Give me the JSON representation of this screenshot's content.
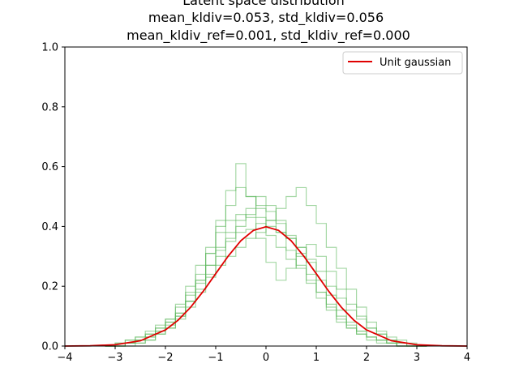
{
  "chart_data": {
    "type": "line",
    "title_lines": [
      "Latent space distribution",
      "mean_kldiv=0.053, std_kldiv=0.056",
      "mean_kldiv_ref=0.001, std_kldiv_ref=0.000"
    ],
    "xlim": [
      -4,
      4
    ],
    "ylim": [
      0.0,
      1.0
    ],
    "x_ticks": [
      -4,
      -3,
      -2,
      -1,
      0,
      1,
      2,
      3,
      4
    ],
    "x_tick_labels": [
      "−4",
      "−3",
      "−2",
      "−1",
      "0",
      "1",
      "2",
      "3",
      "4"
    ],
    "y_ticks": [
      0.0,
      0.2,
      0.4,
      0.6,
      0.8,
      1.0
    ],
    "y_tick_labels": [
      "0.0",
      "0.2",
      "0.4",
      "0.6",
      "0.8",
      "1.0"
    ],
    "grid": false,
    "legend": {
      "placement": "top-right",
      "entries": [
        "Unit gaussian"
      ]
    },
    "colors": {
      "gaussian": "#e00000",
      "histograms": "#5cb85c"
    },
    "reference_curve": {
      "name": "Unit gaussian",
      "x": [
        -4.0,
        -3.5,
        -3.0,
        -2.5,
        -2.0,
        -1.75,
        -1.5,
        -1.25,
        -1.0,
        -0.75,
        -0.5,
        -0.25,
        0.0,
        0.25,
        0.5,
        0.75,
        1.0,
        1.25,
        1.5,
        1.75,
        2.0,
        2.5,
        3.0,
        3.5,
        4.0
      ],
      "y": [
        0.0001,
        0.0009,
        0.0044,
        0.0175,
        0.054,
        0.0863,
        0.1295,
        0.1826,
        0.242,
        0.3011,
        0.3521,
        0.3867,
        0.3989,
        0.3867,
        0.3521,
        0.3011,
        0.242,
        0.1826,
        0.1295,
        0.0863,
        0.054,
        0.0175,
        0.0044,
        0.0009,
        0.0001
      ]
    },
    "histograms": [
      {
        "x": [
          -3.2,
          -3.0,
          -2.8,
          -2.6,
          -2.4,
          -2.2,
          -2.0,
          -1.8,
          -1.6,
          -1.4,
          -1.2,
          -1.0,
          -0.8,
          -0.6,
          -0.4,
          -0.2,
          0.0,
          0.2,
          0.4,
          0.6,
          0.8,
          1.0,
          1.2,
          1.4,
          1.6,
          1.8,
          2.0,
          2.2,
          2.4,
          2.6,
          2.8,
          3.0
        ],
        "y": [
          0.0,
          0.01,
          0.02,
          0.03,
          0.05,
          0.07,
          0.09,
          0.13,
          0.18,
          0.22,
          0.27,
          0.32,
          0.35,
          0.38,
          0.39,
          0.41,
          0.4,
          0.38,
          0.36,
          0.33,
          0.29,
          0.25,
          0.2,
          0.16,
          0.12,
          0.09,
          0.06,
          0.04,
          0.02,
          0.01,
          0.0,
          0.0
        ]
      },
      {
        "x": [
          -3.2,
          -3.0,
          -2.8,
          -2.6,
          -2.4,
          -2.2,
          -2.0,
          -1.8,
          -1.6,
          -1.4,
          -1.2,
          -1.0,
          -0.8,
          -0.6,
          -0.4,
          -0.2,
          0.0,
          0.2,
          0.4,
          0.6,
          0.8,
          1.0,
          1.2,
          1.4,
          1.6,
          1.8,
          2.0,
          2.2,
          2.4,
          2.6,
          2.8,
          3.0
        ],
        "y": [
          0.0,
          0.0,
          0.01,
          0.02,
          0.03,
          0.05,
          0.08,
          0.11,
          0.17,
          0.24,
          0.31,
          0.4,
          0.47,
          0.53,
          0.5,
          0.47,
          0.42,
          0.38,
          0.32,
          0.27,
          0.21,
          0.16,
          0.12,
          0.08,
          0.06,
          0.04,
          0.03,
          0.02,
          0.01,
          0.0,
          0.0,
          0.0
        ]
      },
      {
        "x": [
          -3.2,
          -3.0,
          -2.8,
          -2.6,
          -2.4,
          -2.2,
          -2.0,
          -1.8,
          -1.6,
          -1.4,
          -1.2,
          -1.0,
          -0.8,
          -0.6,
          -0.4,
          -0.2,
          0.0,
          0.2,
          0.4,
          0.6,
          0.8,
          1.0,
          1.2,
          1.4,
          1.6,
          1.8,
          2.0,
          2.2,
          2.4,
          2.6,
          2.8,
          3.0
        ],
        "y": [
          0.0,
          0.0,
          0.01,
          0.01,
          0.02,
          0.04,
          0.06,
          0.1,
          0.15,
          0.22,
          0.31,
          0.42,
          0.52,
          0.61,
          0.5,
          0.43,
          0.37,
          0.33,
          0.29,
          0.26,
          0.22,
          0.18,
          0.14,
          0.1,
          0.07,
          0.05,
          0.03,
          0.02,
          0.01,
          0.0,
          0.0,
          0.0
        ]
      },
      {
        "x": [
          -3.2,
          -3.0,
          -2.8,
          -2.6,
          -2.4,
          -2.2,
          -2.0,
          -1.8,
          -1.6,
          -1.4,
          -1.2,
          -1.0,
          -0.8,
          -0.6,
          -0.4,
          -0.2,
          0.0,
          0.2,
          0.4,
          0.6,
          0.8,
          1.0,
          1.2,
          1.4,
          1.6,
          1.8,
          2.0,
          2.2,
          2.4,
          2.6,
          2.8,
          3.0
        ],
        "y": [
          0.0,
          0.01,
          0.02,
          0.03,
          0.04,
          0.06,
          0.08,
          0.11,
          0.15,
          0.19,
          0.23,
          0.27,
          0.3,
          0.33,
          0.36,
          0.38,
          0.42,
          0.46,
          0.5,
          0.53,
          0.47,
          0.41,
          0.33,
          0.26,
          0.19,
          0.13,
          0.08,
          0.05,
          0.03,
          0.02,
          0.01,
          0.0
        ]
      },
      {
        "x": [
          -3.2,
          -3.0,
          -2.8,
          -2.6,
          -2.4,
          -2.2,
          -2.0,
          -1.8,
          -1.6,
          -1.4,
          -1.2,
          -1.0,
          -0.8,
          -0.6,
          -0.4,
          -0.2,
          0.0,
          0.2,
          0.4,
          0.6,
          0.8,
          1.0,
          1.2,
          1.4,
          1.6,
          1.8,
          2.0,
          2.2,
          2.4,
          2.6,
          2.8,
          3.0
        ],
        "y": [
          0.0,
          0.0,
          0.01,
          0.02,
          0.04,
          0.06,
          0.09,
          0.14,
          0.2,
          0.27,
          0.33,
          0.38,
          0.42,
          0.44,
          0.43,
          0.36,
          0.28,
          0.22,
          0.26,
          0.31,
          0.34,
          0.3,
          0.25,
          0.19,
          0.14,
          0.1,
          0.06,
          0.04,
          0.02,
          0.01,
          0.0,
          0.0
        ]
      },
      {
        "x": [
          -3.2,
          -3.0,
          -2.8,
          -2.6,
          -2.4,
          -2.2,
          -2.0,
          -1.8,
          -1.6,
          -1.4,
          -1.2,
          -1.0,
          -0.8,
          -0.6,
          -0.4,
          -0.2,
          0.0,
          0.2,
          0.4,
          0.6,
          0.8,
          1.0,
          1.2,
          1.4,
          1.6,
          1.8,
          2.0,
          2.2,
          2.4,
          2.6,
          2.8,
          3.0
        ],
        "y": [
          0.0,
          0.0,
          0.01,
          0.02,
          0.03,
          0.05,
          0.07,
          0.1,
          0.15,
          0.21,
          0.27,
          0.33,
          0.38,
          0.42,
          0.46,
          0.5,
          0.47,
          0.42,
          0.36,
          0.3,
          0.24,
          0.18,
          0.13,
          0.09,
          0.06,
          0.04,
          0.02,
          0.01,
          0.01,
          0.0,
          0.0,
          0.0
        ]
      },
      {
        "x": [
          -3.2,
          -3.0,
          -2.8,
          -2.6,
          -2.4,
          -2.2,
          -2.0,
          -1.8,
          -1.6,
          -1.4,
          -1.2,
          -1.0,
          -0.8,
          -0.6,
          -0.4,
          -0.2,
          0.0,
          0.2,
          0.4,
          0.6,
          0.8,
          1.0,
          1.2,
          1.4,
          1.6,
          1.8,
          2.0,
          2.2,
          2.4,
          2.6,
          2.8,
          3.0
        ],
        "y": [
          0.0,
          0.0,
          0.0,
          0.01,
          0.02,
          0.04,
          0.06,
          0.09,
          0.13,
          0.18,
          0.24,
          0.3,
          0.36,
          0.4,
          0.44,
          0.46,
          0.45,
          0.41,
          0.37,
          0.33,
          0.28,
          0.22,
          0.17,
          0.12,
          0.08,
          0.05,
          0.03,
          0.02,
          0.01,
          0.0,
          0.0,
          0.0
        ]
      }
    ]
  }
}
